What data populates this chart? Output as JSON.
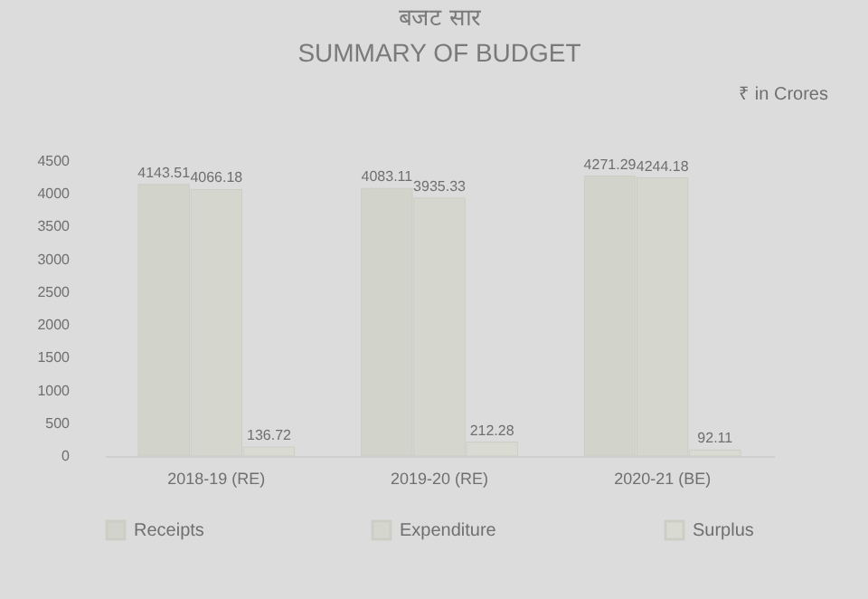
{
  "chart_data": {
    "type": "bar",
    "title": "बजट सार",
    "subtitle": "SUMMARY OF BUDGET",
    "annotations": [
      "₹ in Crores"
    ],
    "categories": [
      "2018-19 (RE)",
      "2019-20 (RE)",
      "2020-21 (BE)"
    ],
    "series": [
      {
        "name": "Receipts",
        "color": "#d2d3ca",
        "values": [
          4143.51,
          4083.11,
          4271.29
        ]
      },
      {
        "name": "Expenditure",
        "color": "#d5d6cd",
        "values": [
          4066.18,
          3935.33,
          4244.18
        ]
      },
      {
        "name": "Surplus",
        "color": "#d9dad2",
        "values": [
          136.72,
          212.28,
          92.11
        ]
      }
    ],
    "ylim": [
      0,
      4500
    ],
    "yticks": [
      0,
      500,
      1000,
      1500,
      2000,
      2500,
      3000,
      3500,
      4000,
      4500
    ],
    "data_labels": true,
    "grid": false,
    "legend": "bottom"
  }
}
